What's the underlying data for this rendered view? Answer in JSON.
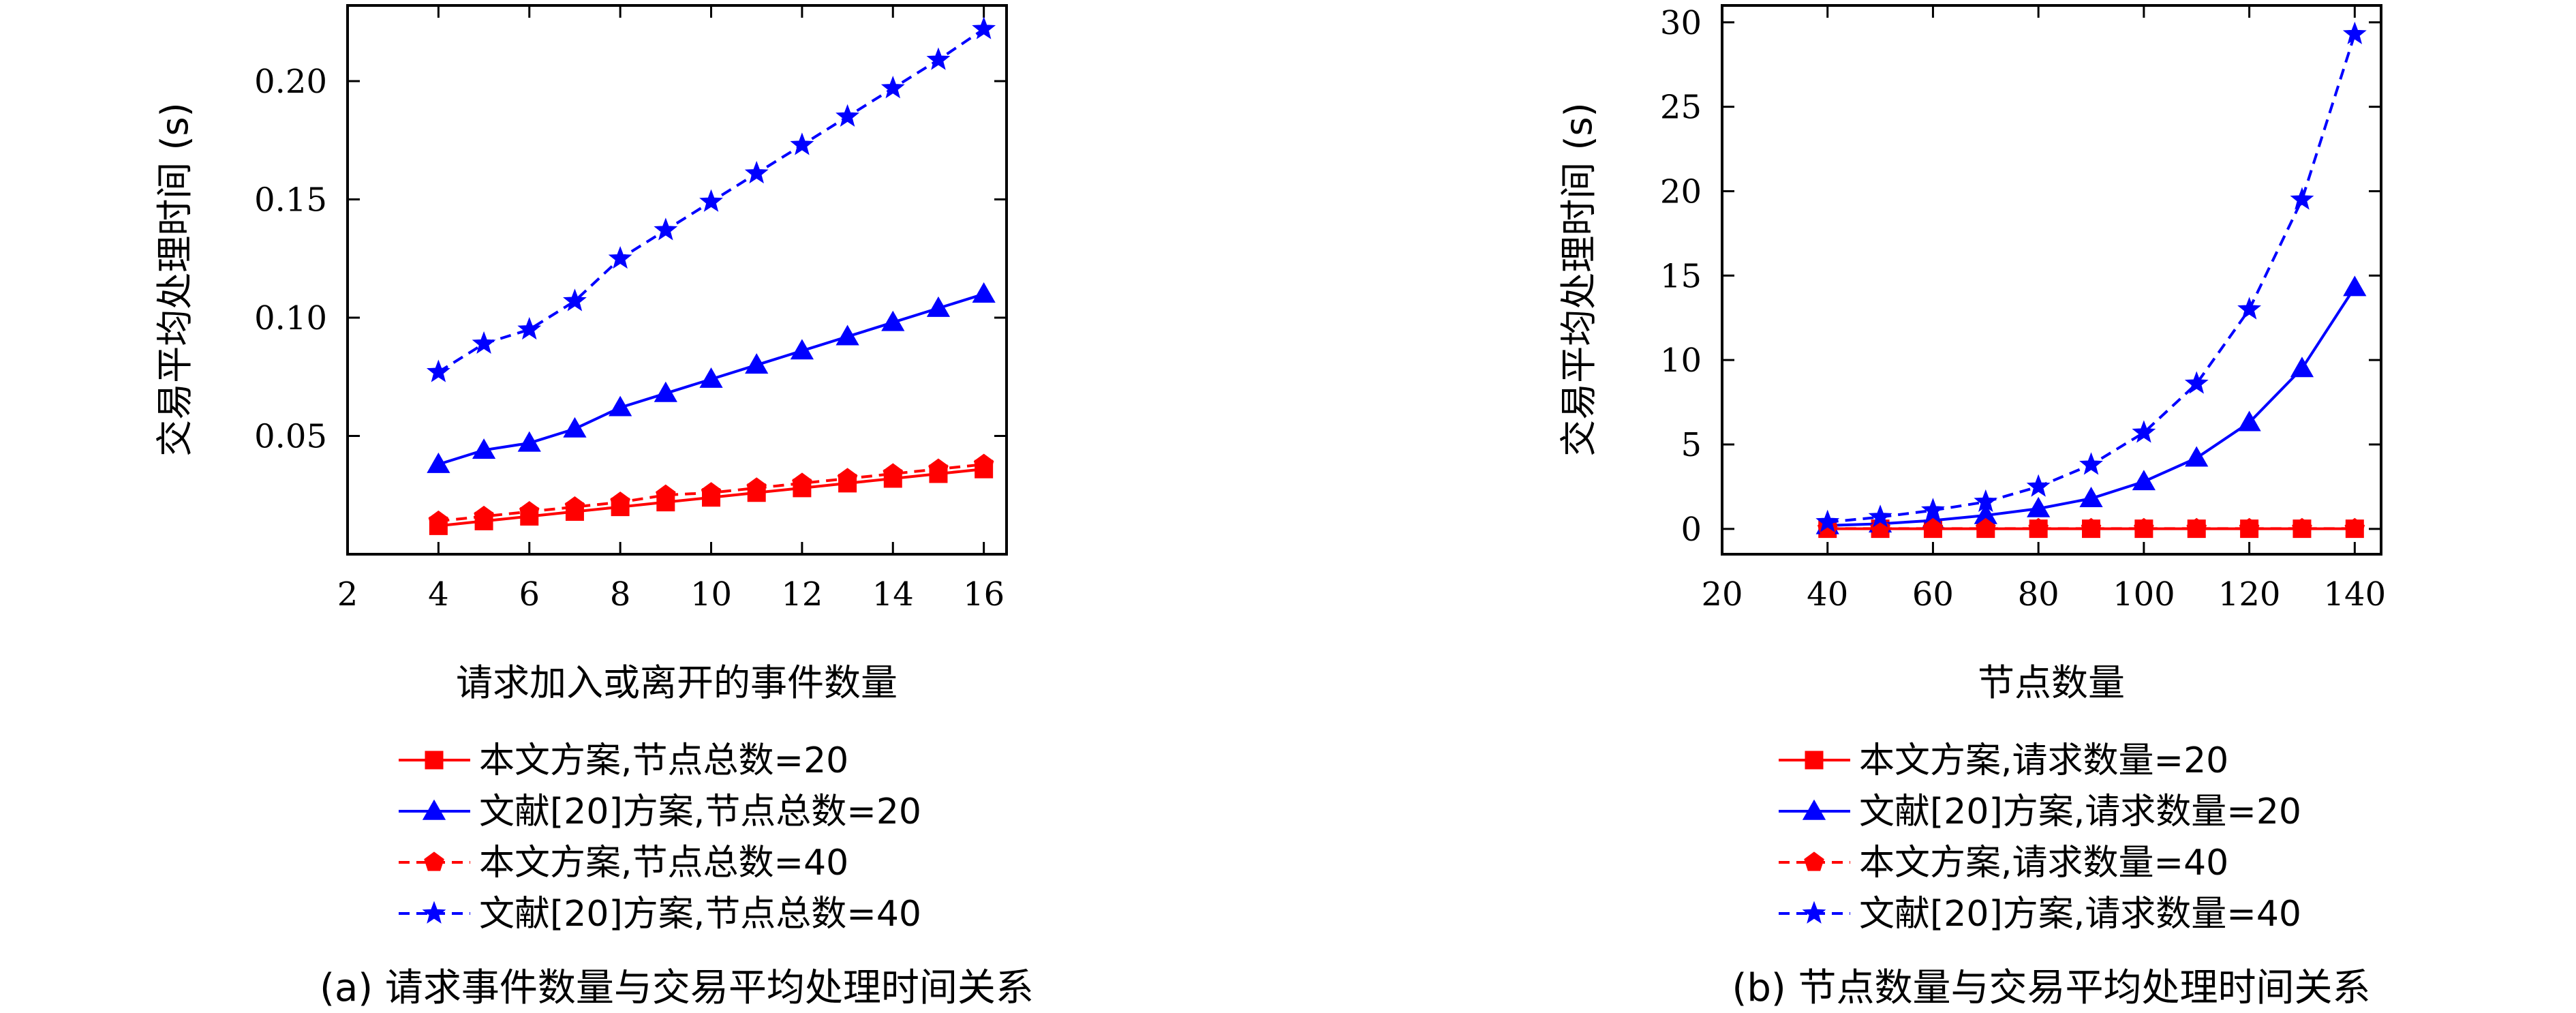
{
  "chart_data": [
    {
      "type": "line",
      "caption": "(a) 请求事件数量与交易平均处理时间关系",
      "xlabel": "请求加入或离开的事件数量",
      "ylabel": "交易平均处理时间 (s)",
      "xlim": [
        2,
        16.5
      ],
      "ylim": [
        0,
        0.232
      ],
      "xticks": [
        2,
        4,
        6,
        8,
        10,
        12,
        14,
        16
      ],
      "yticks": [
        0.05,
        0.1,
        0.15,
        0.2
      ],
      "ytick_labels": [
        "0.05",
        "0.10",
        "0.15",
        "0.20"
      ],
      "x": [
        4,
        5,
        6,
        7,
        8,
        9,
        10,
        11,
        12,
        13,
        14,
        15,
        16
      ],
      "legend_position": "bottom",
      "series": [
        {
          "name": "本文方案,节点总数=20",
          "color": "#ff0000",
          "dash": "solid",
          "marker": "square",
          "values": [
            0.012,
            0.014,
            0.016,
            0.018,
            0.02,
            0.022,
            0.024,
            0.026,
            0.028,
            0.03,
            0.032,
            0.034,
            0.036
          ]
        },
        {
          "name": "文献[20]方案,节点总数=20",
          "color": "#0000ff",
          "dash": "solid",
          "marker": "triangle",
          "values": [
            0.038,
            0.044,
            0.047,
            0.053,
            0.062,
            0.068,
            0.074,
            0.08,
            0.086,
            0.092,
            0.098,
            0.104,
            0.11
          ]
        },
        {
          "name": "本文方案,节点总数=40",
          "color": "#ff0000",
          "dash": "dashed",
          "marker": "pentagon",
          "values": [
            0.014,
            0.016,
            0.018,
            0.02,
            0.022,
            0.025,
            0.026,
            0.028,
            0.03,
            0.032,
            0.034,
            0.036,
            0.038
          ]
        },
        {
          "name": "文献[20]方案,节点总数=40",
          "color": "#0000ff",
          "dash": "dashed",
          "marker": "star",
          "values": [
            0.077,
            0.089,
            0.095,
            0.107,
            0.125,
            0.137,
            0.149,
            0.161,
            0.173,
            0.185,
            0.197,
            0.209,
            0.222
          ]
        }
      ]
    },
    {
      "type": "line",
      "caption": "(b) 节点数量与交易平均处理时间关系",
      "xlabel": "节点数量",
      "ylabel": "交易平均处理时间 (s)",
      "xlim": [
        20,
        145
      ],
      "ylim": [
        -1.5,
        31
      ],
      "xticks": [
        20,
        40,
        60,
        80,
        100,
        120,
        140
      ],
      "yticks": [
        0,
        5,
        10,
        15,
        20,
        25,
        30
      ],
      "ytick_labels": [
        "0",
        "5",
        "10",
        "15",
        "20",
        "25",
        "30"
      ],
      "x": [
        40,
        50,
        60,
        70,
        80,
        90,
        100,
        110,
        120,
        130,
        140
      ],
      "legend_position": "bottom",
      "series": [
        {
          "name": "本文方案,请求数量=20",
          "color": "#ff0000",
          "dash": "solid",
          "marker": "square",
          "values": [
            0.01,
            0.01,
            0.01,
            0.01,
            0.01,
            0.01,
            0.01,
            0.01,
            0.01,
            0.01,
            0.01
          ]
        },
        {
          "name": "文献[20]方案,请求数量=20",
          "color": "#0000ff",
          "dash": "solid",
          "marker": "triangle",
          "values": [
            0.2,
            0.3,
            0.5,
            0.8,
            1.2,
            1.8,
            2.8,
            4.2,
            6.3,
            9.5,
            14.3
          ]
        },
        {
          "name": "本文方案,请求数量=40",
          "color": "#ff0000",
          "dash": "dashed",
          "marker": "pentagon",
          "values": [
            0.02,
            0.02,
            0.02,
            0.02,
            0.02,
            0.02,
            0.02,
            0.02,
            0.02,
            0.02,
            0.02
          ]
        },
        {
          "name": "文献[20]方案,请求数量=40",
          "color": "#0000ff",
          "dash": "dashed",
          "marker": "star",
          "values": [
            0.4,
            0.7,
            1.1,
            1.6,
            2.5,
            3.8,
            5.7,
            8.6,
            13.0,
            19.5,
            29.3
          ]
        }
      ]
    }
  ]
}
